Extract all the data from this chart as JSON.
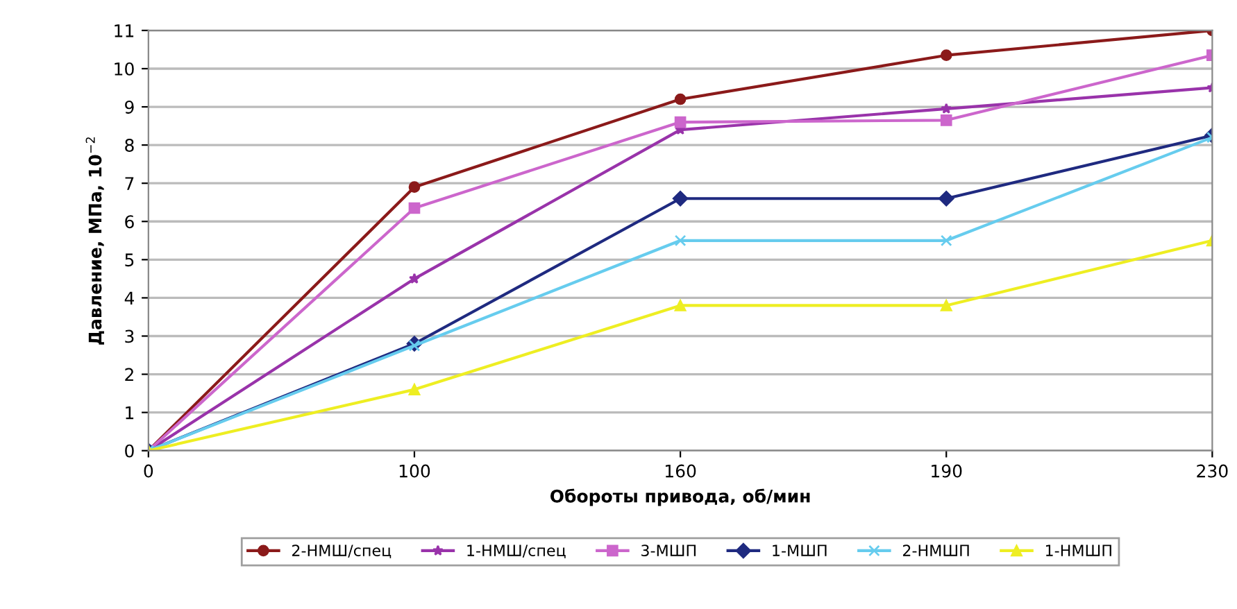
{
  "chart_data": {
    "type": "line",
    "xlabel": "Обороты привода, об/мин",
    "ylabel": "Давление, МПа, 10$^{−2}$",
    "categories": [
      "0",
      "100",
      "160",
      "190",
      "230"
    ],
    "series": [
      {
        "name": "2-НМШ/спец",
        "color": "#8b1a1a",
        "marker": "circle",
        "values": [
          0,
          6.9,
          9.2,
          10.35,
          11
        ]
      },
      {
        "name": "1-НМШ/спец",
        "color": "#9933aa",
        "marker": "star",
        "values": [
          0,
          4.5,
          8.4,
          8.95,
          9.5
        ]
      },
      {
        "name": "3-МШП",
        "color": "#cc66cc",
        "marker": "square",
        "values": [
          0,
          6.35,
          8.6,
          8.65,
          10.35
        ]
      },
      {
        "name": "1-МШП",
        "color": "#1f2a80",
        "marker": "diamond",
        "values": [
          0,
          2.8,
          6.6,
          6.6,
          8.25
        ]
      },
      {
        "name": "2-НМШП",
        "color": "#66ccee",
        "marker": "cross",
        "values": [
          0,
          2.75,
          5.5,
          5.5,
          8.2
        ]
      },
      {
        "name": "1-НМШП",
        "color": "#eeee22",
        "marker": "triangle",
        "values": [
          0,
          1.6,
          3.8,
          3.8,
          5.5
        ]
      }
    ],
    "ylim": [
      0,
      11
    ],
    "yticks": [
      0,
      1,
      2,
      3,
      4,
      5,
      6,
      7,
      8,
      9,
      10,
      11
    ],
    "grid": "y",
    "legend": "bottom",
    "line_style": "solid"
  }
}
